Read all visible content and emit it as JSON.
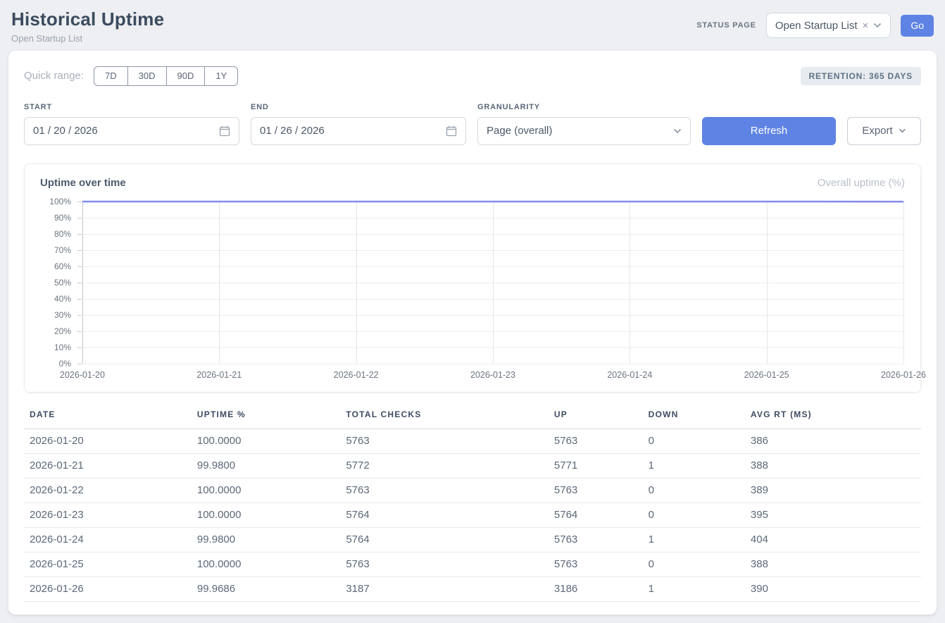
{
  "header": {
    "title": "Historical Uptime",
    "subtitle": "Open Startup List",
    "status_page_label": "STATUS PAGE",
    "status_page_value": "Open Startup List",
    "clear_icon": "×",
    "go_label": "Go"
  },
  "filters": {
    "quick_range_label": "Quick range:",
    "quick_ranges": [
      "7D",
      "30D",
      "90D",
      "1Y"
    ],
    "retention_badge": "RETENTION: 365 DAYS",
    "start_label": "START",
    "start_value": "01 / 20 / 2026",
    "end_label": "END",
    "end_value": "01 / 26 / 2026",
    "granularity_label": "GRANULARITY",
    "granularity_value": "Page (overall)",
    "refresh_label": "Refresh",
    "export_label": "Export"
  },
  "colors": {
    "accent_blue": "#5f83e4",
    "line_color": "#8289ee"
  },
  "chart_data": {
    "type": "line",
    "title": "Uptime over time",
    "legend": "Overall uptime (%)",
    "legend_position": "top-right",
    "categories": [
      "2026-01-20",
      "2026-01-21",
      "2026-01-22",
      "2026-01-23",
      "2026-01-24",
      "2026-01-25",
      "2026-01-26"
    ],
    "values": [
      100.0,
      99.98,
      100.0,
      100.0,
      99.98,
      100.0,
      99.9686
    ],
    "xlabel": "",
    "ylabel": "",
    "ylim": [
      0,
      100
    ],
    "y_ticks": [
      0,
      10,
      20,
      30,
      40,
      50,
      60,
      70,
      80,
      90,
      100
    ],
    "y_tick_suffix": "%",
    "grid": true
  },
  "table": {
    "columns": [
      "DATE",
      "UPTIME %",
      "TOTAL CHECKS",
      "UP",
      "DOWN",
      "AVG RT (MS)"
    ],
    "rows": [
      [
        "2026-01-20",
        "100.0000",
        "5763",
        "5763",
        "0",
        "386"
      ],
      [
        "2026-01-21",
        "99.9800",
        "5772",
        "5771",
        "1",
        "388"
      ],
      [
        "2026-01-22",
        "100.0000",
        "5763",
        "5763",
        "0",
        "389"
      ],
      [
        "2026-01-23",
        "100.0000",
        "5764",
        "5764",
        "0",
        "395"
      ],
      [
        "2026-01-24",
        "99.9800",
        "5764",
        "5763",
        "1",
        "404"
      ],
      [
        "2026-01-25",
        "100.0000",
        "5763",
        "5763",
        "0",
        "388"
      ],
      [
        "2026-01-26",
        "99.9686",
        "3187",
        "3186",
        "1",
        "390"
      ]
    ]
  }
}
